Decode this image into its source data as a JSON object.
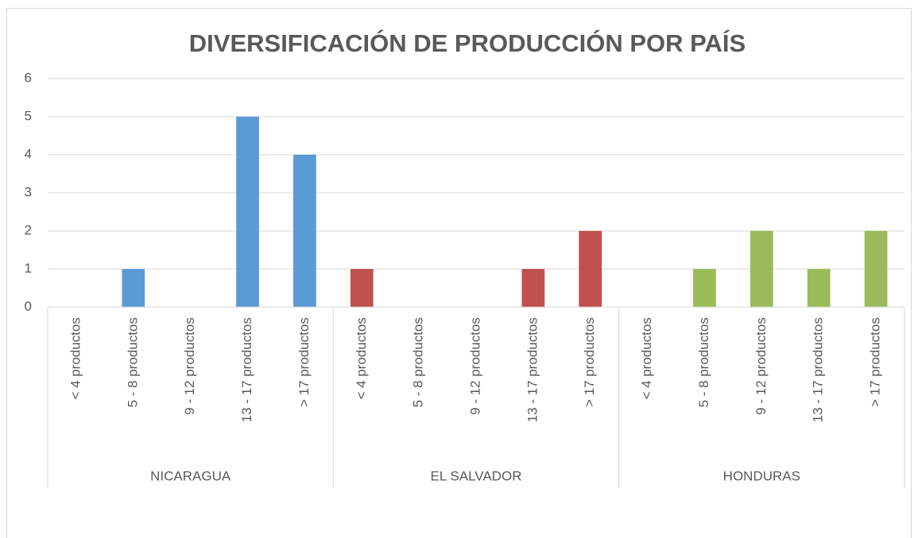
{
  "chart_data": {
    "type": "bar",
    "title": "DIVERSIFICACIÓN DE PRODUCCIÓN POR PAÍS",
    "groups": [
      {
        "name": "NICARAGUA",
        "color": "#5b9bd5",
        "categories": [
          "< 4 productos",
          "5 - 8 productos",
          "9 - 12 productos",
          "13 - 17 productos",
          "> 17 productos"
        ],
        "values": [
          0,
          1,
          0,
          5,
          4
        ]
      },
      {
        "name": "EL SALVADOR",
        "color": "#c0504d",
        "categories": [
          "< 4 productos",
          "5 - 8 productos",
          "9 - 12 productos",
          "13 - 17 productos",
          "> 17 productos"
        ],
        "values": [
          1,
          0,
          0,
          1,
          2
        ]
      },
      {
        "name": "HONDURAS",
        "color": "#9bbb59",
        "categories": [
          "< 4 productos",
          "5 - 8 productos",
          "9 - 12 productos",
          "13 - 17 productos",
          "> 17 productos"
        ],
        "values": [
          0,
          1,
          2,
          1,
          2
        ]
      }
    ],
    "ylim": [
      0,
      6
    ],
    "yticks": [
      0,
      1,
      2,
      3,
      4,
      5,
      6
    ],
    "grid": true
  }
}
